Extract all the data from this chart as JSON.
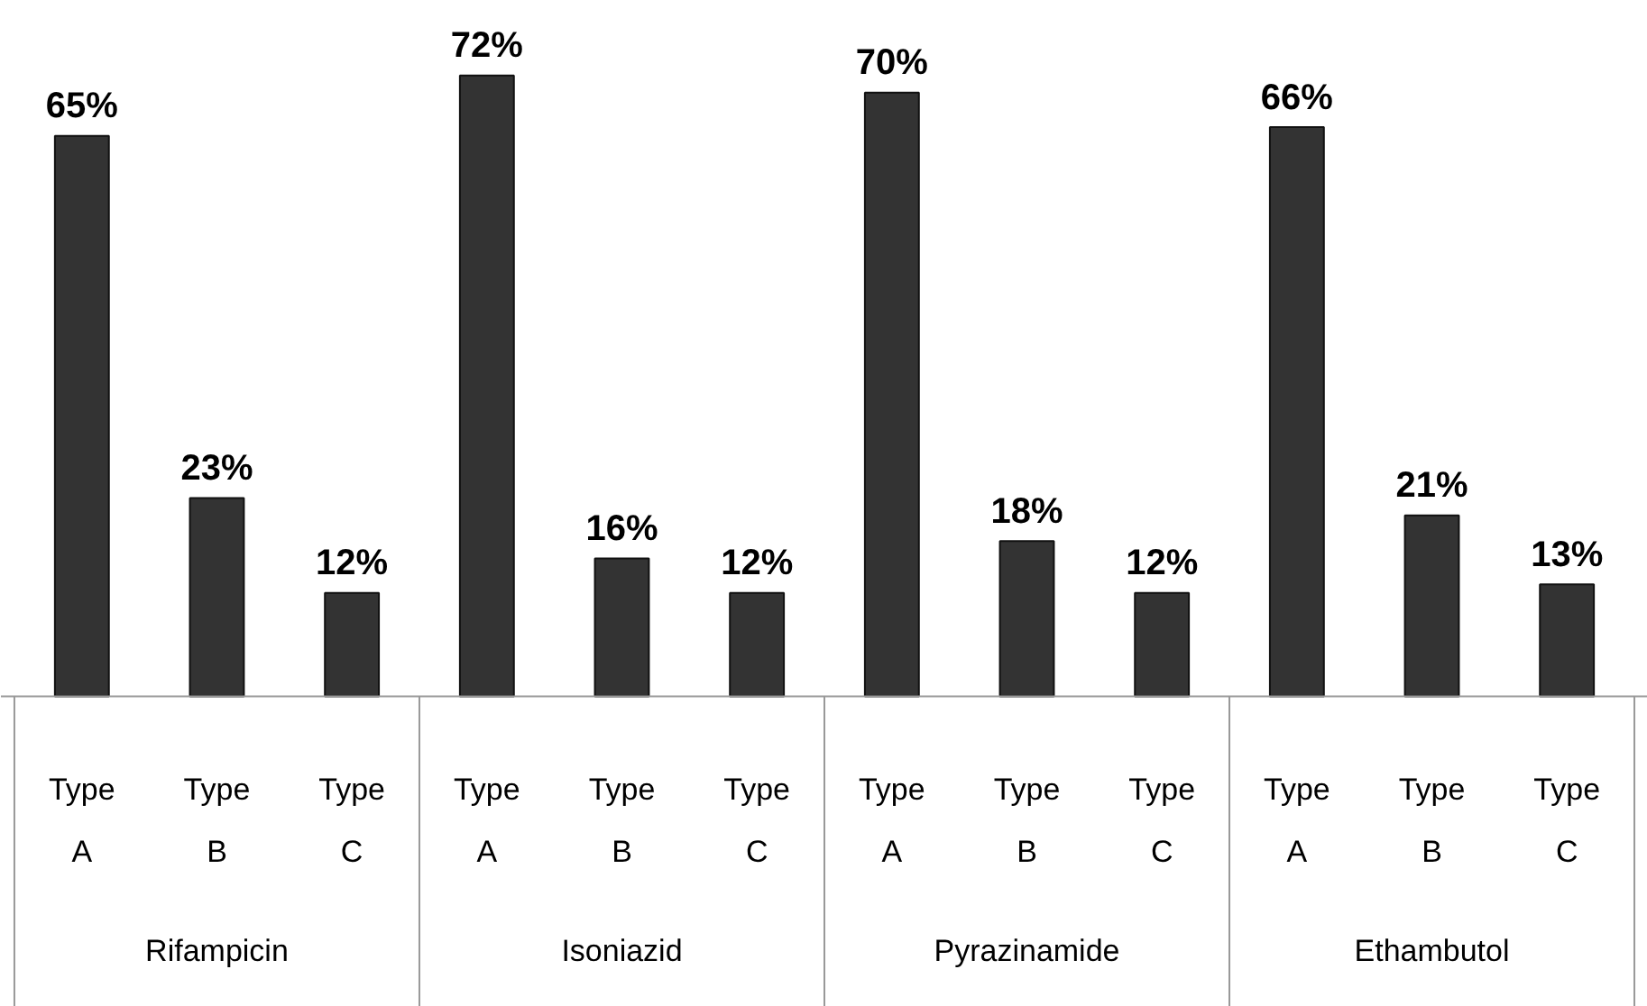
{
  "chart_data": {
    "type": "bar",
    "categories": [
      "Type A",
      "Type B",
      "Type C",
      "Type A",
      "Type B",
      "Type C",
      "Type A",
      "Type B",
      "Type C",
      "Type A",
      "Type B",
      "Type C"
    ],
    "values": [
      65,
      23,
      12,
      72,
      16,
      12,
      70,
      18,
      12,
      66,
      21,
      13
    ],
    "value_labels": [
      "65%",
      "23%",
      "12%",
      "72%",
      "16%",
      "12%",
      "70%",
      "18%",
      "12%",
      "66%",
      "21%",
      "13%"
    ],
    "color": "#333333",
    "annotations": [
      "Rifampicin",
      "Isoniazid",
      "Pyrazinamide",
      "Ethambutol"
    ],
    "grid": false
  }
}
